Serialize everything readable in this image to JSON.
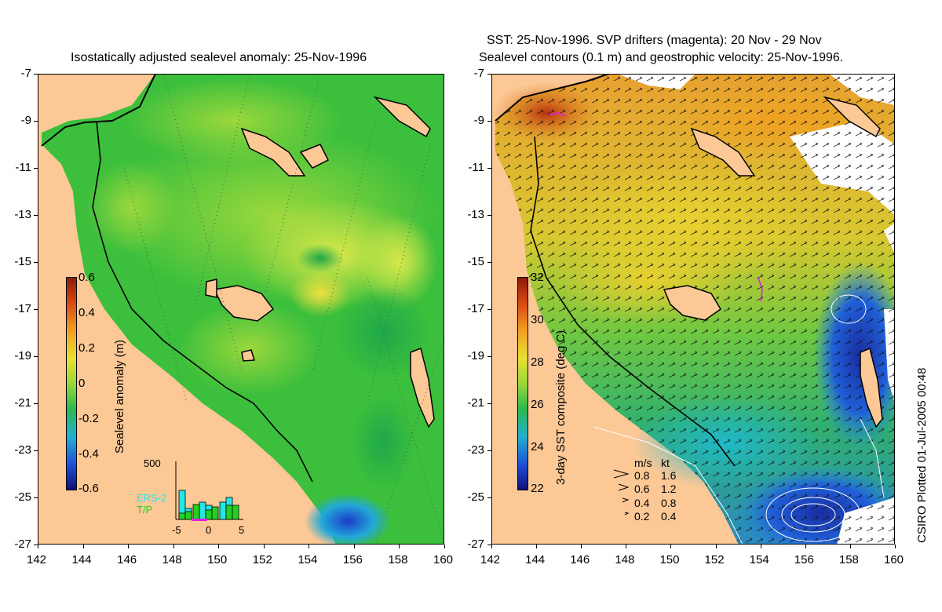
{
  "left_panel": {
    "title": "Isostatically adjusted sealevel anomaly: 25-Nov-1996",
    "colorbar": {
      "label": "Sealevel anomaly (m)",
      "ticks": [
        "0.6",
        "0.4",
        "0.2",
        "0",
        "-0.2",
        "-0.4",
        "-0.6"
      ]
    },
    "histogram": {
      "ymax_label": "500",
      "legend": [
        "ERS-2",
        "T/P"
      ],
      "x_ticks": [
        "-5",
        "0",
        "5"
      ],
      "ers2_color": "#26e5e5",
      "tp_color": "#22d222"
    }
  },
  "right_panel": {
    "title_line1": "SST: 25-Nov-1996. SVP drifters (magenta): 20 Nov - 29 Nov",
    "title_line2": "Sealevel contours (0.1 m) and geostrophic velocity: 25-Nov-1996.",
    "colorbar": {
      "label": "3-day SST composite (deg C)",
      "ticks": [
        "32",
        "30",
        "28",
        "26",
        "24",
        "22"
      ]
    },
    "velocity_key": {
      "header": [
        "m/s",
        "kt"
      ],
      "rows": [
        [
          "0.8",
          "1.6"
        ],
        [
          "0.6",
          "1.2"
        ],
        [
          "0.4",
          "0.8"
        ],
        [
          "0.2",
          "0.4"
        ]
      ]
    }
  },
  "axes": {
    "y_ticks": [
      "-7",
      "-9",
      "-11",
      "-13",
      "-15",
      "-17",
      "-19",
      "-21",
      "-23",
      "-25",
      "-27"
    ],
    "x_ticks": [
      "142",
      "144",
      "146",
      "148",
      "150",
      "152",
      "154",
      "156",
      "158",
      "160"
    ]
  },
  "credit": "CSIRO Plotted 01-Jul-2005 00:48",
  "colors": {
    "land": "#fcc896",
    "ocean_green": "#3cc03c",
    "ocean_light": "#a8dc3c",
    "drifter": "#e020e0"
  }
}
